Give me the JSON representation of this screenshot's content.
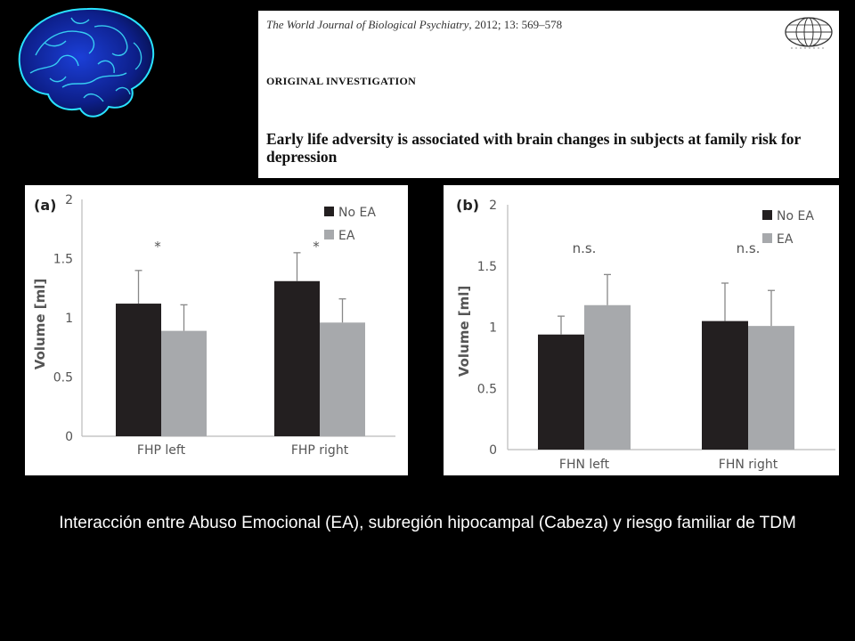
{
  "paper": {
    "journal": "The World Journal of Biological Psychiatry",
    "journal_meta": ", 2012; 13: 569–578",
    "section": "ORIGINAL INVESTIGATION",
    "title": "Early life adversity is associated with brain changes in subjects at family risk for depression"
  },
  "caption": "Interacción entre Abuso Emocional (EA), subregión hipocampal (Cabeza) y riesgo familiar de TDM",
  "colors": {
    "no_ea": "#231f20",
    "ea": "#a7a9ac",
    "axis": "#bbbbbb",
    "error": "#888888"
  },
  "chart_data": [
    {
      "type": "bar",
      "panel": "(a)",
      "ylabel": "Volume [ml]",
      "ylim": [
        0,
        2
      ],
      "yticks": [
        "0",
        "0.5",
        "1",
        "1.5",
        "2"
      ],
      "categories": [
        "FHP left",
        "FHP right"
      ],
      "series": [
        {
          "name": "No EA",
          "values": [
            1.12,
            1.31
          ],
          "error": [
            0.28,
            0.24
          ]
        },
        {
          "name": "EA",
          "values": [
            0.89,
            0.96
          ],
          "error": [
            0.22,
            0.2
          ]
        }
      ],
      "annotations": [
        "*",
        "*"
      ],
      "legend_position": "top-right"
    },
    {
      "type": "bar",
      "panel": "(b)",
      "ylabel": "Volume [ml]",
      "ylim": [
        0,
        2
      ],
      "yticks": [
        "0",
        "0.5",
        "1",
        "1.5",
        "2"
      ],
      "categories": [
        "FHN left",
        "FHN right"
      ],
      "series": [
        {
          "name": "No EA",
          "values": [
            0.94,
            1.05
          ],
          "error": [
            0.15,
            0.31
          ]
        },
        {
          "name": "EA",
          "values": [
            1.18,
            1.01
          ],
          "error": [
            0.25,
            0.29
          ]
        }
      ],
      "annotations": [
        "n.s.",
        "n.s."
      ],
      "legend_position": "top-right"
    }
  ]
}
